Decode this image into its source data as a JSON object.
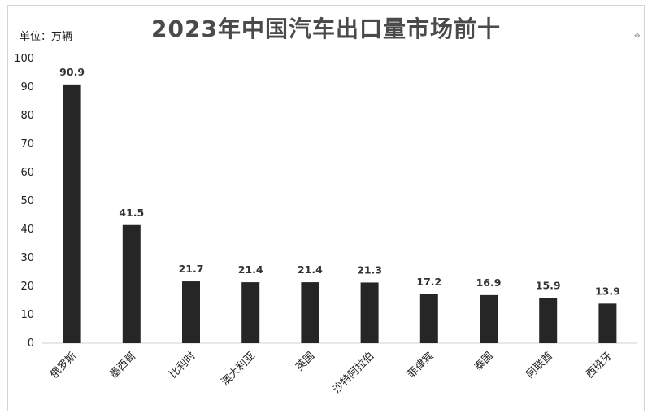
{
  "chart_data": {
    "type": "bar",
    "title": "2023年中国汽车出口量市场前十",
    "unit_label": "单位：万辆",
    "categories": [
      "俄罗斯",
      "墨西哥",
      "比利时",
      "澳大利亚",
      "英国",
      "沙特阿拉伯",
      "菲律宾",
      "泰国",
      "阿联酋",
      "西班牙"
    ],
    "values": [
      90.9,
      41.5,
      21.7,
      21.4,
      21.4,
      21.3,
      17.2,
      16.9,
      15.9,
      13.9
    ],
    "value_labels": [
      "90.9",
      "41.5",
      "21.7",
      "21.4",
      "21.4",
      "21.3",
      "17.2",
      "16.9",
      "15.9",
      "13.9"
    ],
    "y_ticks": [
      "0",
      "10",
      "20",
      "30",
      "40",
      "50",
      "60",
      "70",
      "80",
      "90",
      "100"
    ],
    "ylim": [
      0,
      100
    ],
    "bar_color": "#262626",
    "grid": false,
    "legend": "none"
  }
}
